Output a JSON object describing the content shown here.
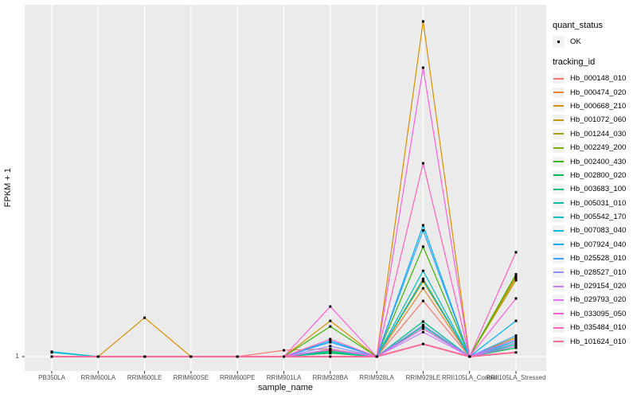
{
  "figure": {
    "bg": "#FFFFFF",
    "panel_bg": "#EBEBEB",
    "grid_color": "#FFFFFF",
    "key_bg": "#F2F2F2",
    "axis_text_color": "#4D4D4D",
    "tick_color": "#333333",
    "point_color": "#000000"
  },
  "chart_data": {
    "type": "line",
    "title": "",
    "xlabel": "sample_name",
    "ylabel": "FPKM + 1",
    "legend_position": "right",
    "grid": "vertical major gridlines per sample plus horizontal line at y=1",
    "y_axis": {
      "tick_labels": [
        "1"
      ],
      "note": "log-style axis; only the baseline FPKM+1 = 1 is labeled. Series values below are heights above that baseline as a fraction of full panel height (0 = 1 FPKM+1, 1 = panel top)."
    },
    "categories": [
      "PB350LA",
      "RRIM600LA",
      "RRIM600LE",
      "RRIM600SE",
      "RRIM600PE",
      "RRIM901LA",
      "RRIM928BA",
      "RRIM928LA",
      "RRIM928LE",
      "RRII105LA_Control",
      "RRII105LA_Stressed"
    ],
    "legend": {
      "quant_status_title": "quant_status",
      "quant_status_items": [
        "OK"
      ],
      "tracking_id_title": "tracking_id"
    },
    "series": [
      {
        "name": "Hb_000148_010",
        "color": "#F8766D",
        "values_rel": [
          0,
          0,
          0,
          0,
          0,
          0.018,
          0.022,
          0,
          0.159,
          0,
          0.03
        ]
      },
      {
        "name": "Hb_000474_020",
        "color": "#EA8331",
        "values_rel": [
          0,
          0,
          0,
          0,
          0,
          0,
          0.02,
          0,
          0.195,
          0,
          0.225
        ]
      },
      {
        "name": "Hb_000668_210",
        "color": "#D89000",
        "values_rel": [
          0,
          0,
          0.111,
          0,
          0,
          0,
          0.102,
          0,
          0.957,
          0,
          0.23
        ]
      },
      {
        "name": "Hb_001072_060",
        "color": "#C09B00",
        "values_rel": [
          0,
          0,
          0,
          0,
          0,
          0,
          0.018,
          0,
          0.222,
          0,
          0.055
        ]
      },
      {
        "name": "Hb_001244_030",
        "color": "#A3A500",
        "values_rel": [
          0,
          0,
          0,
          0,
          0,
          0,
          0.018,
          0,
          0.215,
          0,
          0.218
        ]
      },
      {
        "name": "Hb_002249_200",
        "color": "#7CAE00",
        "values_rel": [
          0,
          0,
          0,
          0,
          0,
          0,
          0.015,
          0,
          0.1,
          0,
          0.04
        ]
      },
      {
        "name": "Hb_002400_430",
        "color": "#39B600",
        "values_rel": [
          0,
          0,
          0,
          0,
          0,
          0,
          0.086,
          0,
          0.314,
          0,
          0.235
        ]
      },
      {
        "name": "Hb_002800_020",
        "color": "#00BB4E",
        "values_rel": [
          0,
          0,
          0,
          0,
          0,
          0,
          0.01,
          0,
          0.08,
          0,
          0.025
        ]
      },
      {
        "name": "Hb_003683_100",
        "color": "#00BF7D",
        "values_rel": [
          0,
          0,
          0,
          0,
          0,
          0,
          0.012,
          0,
          0.086,
          0,
          0.03
        ]
      },
      {
        "name": "Hb_005031_010",
        "color": "#00C1A3",
        "values_rel": [
          0,
          0,
          0,
          0,
          0,
          0,
          0.015,
          0,
          0.1,
          0,
          0.035
        ]
      },
      {
        "name": "Hb_005542_170",
        "color": "#00BFC4",
        "values_rel": [
          0.014,
          0,
          0,
          0,
          0,
          0,
          0.02,
          0,
          0.245,
          0,
          0.05
        ]
      },
      {
        "name": "Hb_007083_040",
        "color": "#00BAE0",
        "values_rel": [
          0.012,
          0,
          0,
          0,
          0,
          0,
          0.02,
          0,
          0.22,
          0,
          0.045
        ]
      },
      {
        "name": "Hb_007924_040",
        "color": "#00B0F6",
        "values_rel": [
          0,
          0,
          0,
          0,
          0,
          0,
          0.045,
          0,
          0.375,
          0,
          0.102
        ]
      },
      {
        "name": "Hb_025528_010",
        "color": "#35A2FF",
        "values_rel": [
          0,
          0,
          0,
          0,
          0,
          0,
          0.041,
          0,
          0.36,
          0,
          0.06
        ]
      },
      {
        "name": "Hb_028527_010",
        "color": "#9590FF",
        "values_rel": [
          0,
          0,
          0,
          0,
          0,
          0,
          0.03,
          0,
          0.09,
          0,
          0.04
        ]
      },
      {
        "name": "Hb_029154_020",
        "color": "#C77CFF",
        "values_rel": [
          0,
          0,
          0,
          0,
          0,
          0,
          0.02,
          0,
          0.07,
          0,
          0.03
        ]
      },
      {
        "name": "Hb_029793_020",
        "color": "#E76BF3",
        "values_rel": [
          0,
          0,
          0,
          0,
          0,
          0,
          0.02,
          0,
          0.08,
          0,
          0.05
        ]
      },
      {
        "name": "Hb_033095_050",
        "color": "#FA62DB",
        "values_rel": [
          0,
          0,
          0,
          0,
          0,
          0,
          0.143,
          0,
          0.825,
          0,
          0.166
        ]
      },
      {
        "name": "Hb_035484_010",
        "color": "#FF62BC",
        "values_rel": [
          0,
          0,
          0,
          0,
          0,
          0,
          0.05,
          0,
          0.552,
          0,
          0.298
        ]
      },
      {
        "name": "Hb_101624_010",
        "color": "#FF6A98",
        "values_rel": [
          0,
          0,
          0,
          0,
          0,
          0,
          0,
          0,
          0.036,
          0,
          0.012
        ]
      }
    ]
  }
}
